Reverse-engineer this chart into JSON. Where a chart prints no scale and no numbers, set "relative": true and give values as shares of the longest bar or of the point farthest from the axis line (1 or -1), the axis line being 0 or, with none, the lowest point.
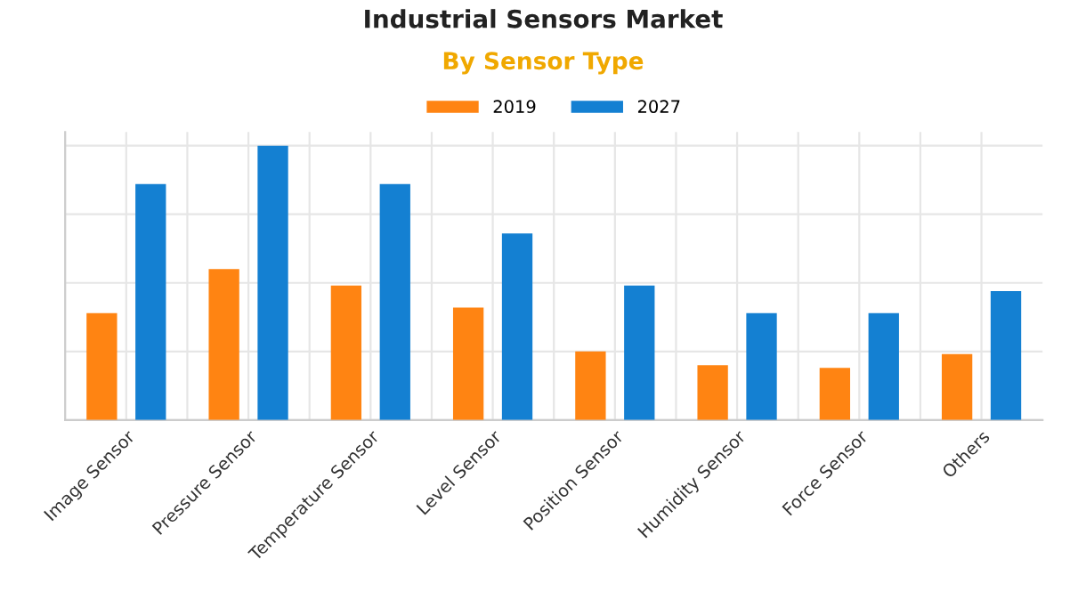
{
  "chart_data": {
    "type": "bar",
    "title": "Industrial Sensors Market",
    "subtitle": "By Sensor Type",
    "categories": [
      "Image Sensor",
      "Pressure Sensor",
      "Temperature Sensor",
      "Level Sensor",
      "Position Sensor",
      "Humidity Sensor",
      "Force Sensor",
      "Others"
    ],
    "series": [
      {
        "name": "2019",
        "color": "#ff8412",
        "values": [
          0.39,
          0.55,
          0.49,
          0.41,
          0.25,
          0.2,
          0.19,
          0.24
        ]
      },
      {
        "name": "2027",
        "color": "#1480d2",
        "values": [
          0.86,
          1,
          0.86,
          0.68,
          0.49,
          0.39,
          0.39,
          0.47
        ]
      }
    ],
    "relative": true,
    "grid": true,
    "legend": "top"
  }
}
